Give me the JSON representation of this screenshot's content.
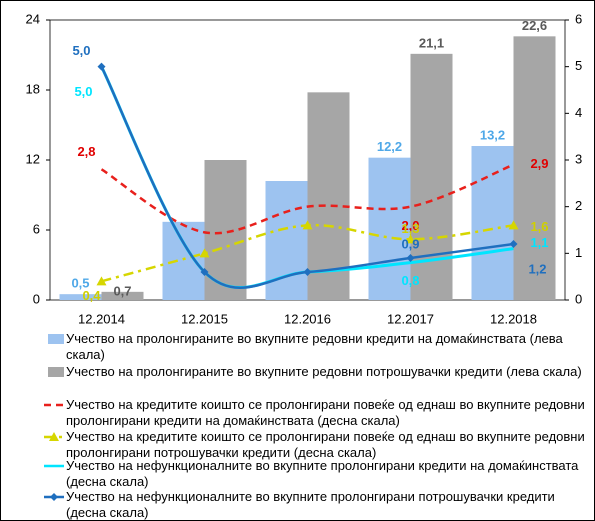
{
  "chart_data": {
    "type": "bar-line",
    "categories": [
      "12.2014",
      "12.2015",
      "12.2016",
      "12.2017",
      "12.2018"
    ],
    "ylim": [
      0,
      24
    ],
    "yticks": [
      0,
      6,
      12,
      18,
      24
    ],
    "y2lim": [
      0,
      6
    ],
    "y2ticks": [
      0,
      1,
      2,
      3,
      4,
      5,
      6
    ],
    "series": [
      {
        "name": "Учество на пролонгираните во вкупните редовни кредити на домаќинствата (лева скала)",
        "kind": "bar",
        "color": "#9dc3f0",
        "label_color": "#4fa8e8",
        "values": [
          0.5,
          6.7,
          10.2,
          12.2,
          13.2
        ],
        "value_labels": [
          "0,5",
          null,
          null,
          "12,2",
          "13,2"
        ]
      },
      {
        "name": "Учество на пролонгираните во вкупните редовни потрошувачки кредити (лева скала)",
        "kind": "bar",
        "color": "#a6a6a6",
        "label_color": "#595959",
        "values": [
          0.7,
          12.0,
          17.8,
          21.1,
          22.6
        ],
        "value_labels": [
          "0,7",
          null,
          null,
          "21,1",
          "22,6"
        ]
      },
      {
        "name": "Учество на кредитите коишто се пролонгирани повеќе од еднаш во вкупните редовни пролонгирани кредити на домаќинствата (десна скала)",
        "kind": "dashed",
        "axis": "y2",
        "color": "#e8201c",
        "label_color": "#e00000",
        "values": [
          2.8,
          1.45,
          2.0,
          2.0,
          2.9
        ],
        "value_labels": [
          "2,8",
          null,
          null,
          "2,0",
          "2,9"
        ]
      },
      {
        "name": "Учество на кредитите коишто се пролонгирани повеќе од еднаш во вкупните редовни пролонгирани потрошувачки кредити (десна скала)",
        "kind": "dashdot",
        "axis": "y2",
        "color": "#d6d600",
        "label_color": "#d0d000",
        "values": [
          0.4,
          1.0,
          1.6,
          1.3,
          1.6
        ],
        "value_labels": [
          "0,4",
          null,
          null,
          "1,3",
          "1,6"
        ]
      },
      {
        "name": "Учество на нефункционалните во вкупните пролонгирани кредити на домаќинствата (десна скала)",
        "kind": "solid",
        "axis": "y2",
        "color": "#00e5ff",
        "label_color": "#00e5ff",
        "values": [
          5.0,
          0.6,
          0.6,
          0.8,
          1.1
        ],
        "value_labels": [
          "5,0",
          null,
          null,
          "0,8",
          "1,1"
        ]
      },
      {
        "name": "Учество на нефункционалните во вкупните пролонгирани потрошувачки кредити (десна скала)",
        "kind": "diamond",
        "axis": "y2",
        "color": "#1f6fbf",
        "label_color": "#1f6fbf",
        "values": [
          5.0,
          0.6,
          0.6,
          0.9,
          1.2
        ],
        "value_labels": [
          "5,0",
          null,
          null,
          "0,9",
          "1,2"
        ]
      }
    ]
  }
}
